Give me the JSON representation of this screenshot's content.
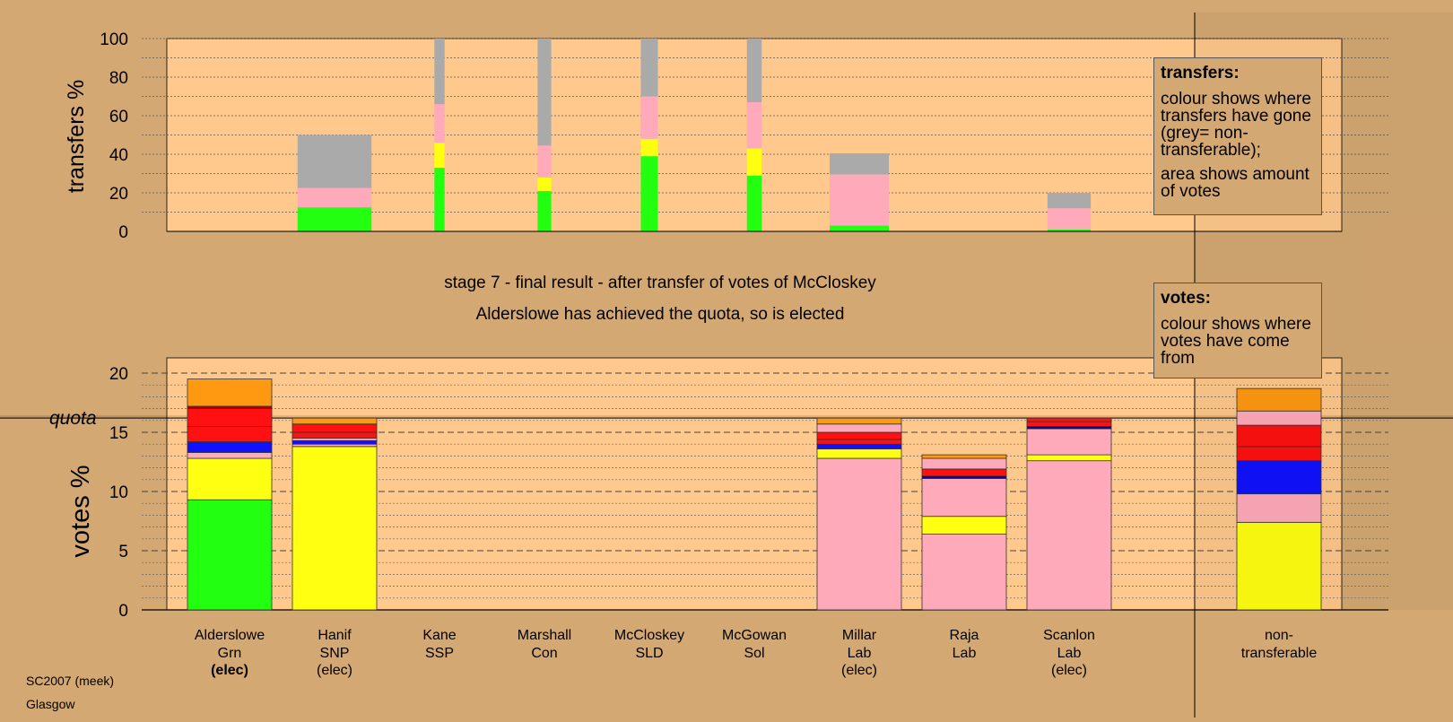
{
  "titles": {
    "stage": "stage 7 - final result - after transfer of votes of McCloskey",
    "status": "Alderslowe has achieved the quota, so is elected"
  },
  "legend": {
    "transfers": {
      "title": "transfers:",
      "para1": "colour shows where transfers have gone (grey= non-transferable);",
      "para2": "area shows amount of votes"
    },
    "votes": {
      "title": "votes:",
      "para1": "colour shows where votes have come from"
    }
  },
  "footer": {
    "line1": "SC2007 (meek)",
    "line2": "Glasgow"
  },
  "colors": {
    "background": "#d4a872",
    "plot_background": "#ffc88c",
    "green": "#22ff11",
    "yellow": "#ffff11",
    "pink": "#ffaabb",
    "blue": "#1111ff",
    "red": "#ff1111",
    "orange": "#ff9911",
    "grey": "#aaaaaa",
    "navy": "#000088",
    "darkred": "#aa0000"
  },
  "candidates": [
    {
      "name": "Alderslowe",
      "party": "Grn",
      "note": "(elec)",
      "note_bold": true
    },
    {
      "name": "Hanif",
      "party": "SNP",
      "note": "(elec)",
      "note_bold": false
    },
    {
      "name": "Kane",
      "party": "SSP",
      "note": "",
      "note_bold": false
    },
    {
      "name": "Marshall",
      "party": "Con",
      "note": "",
      "note_bold": false
    },
    {
      "name": "McCloskey",
      "party": "SLD",
      "note": "",
      "note_bold": false
    },
    {
      "name": "McGowan",
      "party": "Sol",
      "note": "",
      "note_bold": false
    },
    {
      "name": "Millar",
      "party": "Lab",
      "note": "(elec)",
      "note_bold": false
    },
    {
      "name": "Raja",
      "party": "Lab",
      "note": "",
      "note_bold": false
    },
    {
      "name": "Scanlon",
      "party": "Lab",
      "note": "(elec)",
      "note_bold": false
    },
    {
      "name": "non-",
      "party": "transferable",
      "note": "",
      "note_bold": false
    }
  ],
  "chart_data": [
    {
      "type": "bar",
      "subtype": "stacked-transfer",
      "ylabel": "transfers %",
      "ylim": [
        0,
        100
      ],
      "yticks": [
        0,
        20,
        40,
        60,
        80,
        100
      ],
      "grid": true,
      "bars": [
        {
          "from": "Hanif",
          "width_share": 0.65,
          "segments": [
            {
              "color": "green",
              "value": 12.5
            },
            {
              "color": "pink",
              "value": 10
            },
            {
              "color": "grey",
              "value": 27.5
            }
          ]
        },
        {
          "from": "Kane",
          "width_share": 0.09,
          "segments": [
            {
              "color": "green",
              "value": 33
            },
            {
              "color": "yellow",
              "value": 13
            },
            {
              "color": "pink",
              "value": 20
            },
            {
              "color": "grey",
              "value": 34
            }
          ]
        },
        {
          "from": "Marshall",
          "width_share": 0.12,
          "segments": [
            {
              "color": "green",
              "value": 21
            },
            {
              "color": "yellow",
              "value": 7
            },
            {
              "color": "pink",
              "value": 16.5
            },
            {
              "color": "grey",
              "value": 55.5
            }
          ]
        },
        {
          "from": "McCloskey",
          "width_share": 0.15,
          "segments": [
            {
              "color": "green",
              "value": 39
            },
            {
              "color": "yellow",
              "value": 9
            },
            {
              "color": "pink",
              "value": 22
            },
            {
              "color": "grey",
              "value": 30
            }
          ]
        },
        {
          "from": "McGowan",
          "width_share": 0.13,
          "segments": [
            {
              "color": "green",
              "value": 29
            },
            {
              "color": "yellow",
              "value": 14
            },
            {
              "color": "pink",
              "value": 24
            },
            {
              "color": "grey",
              "value": 33
            }
          ]
        },
        {
          "from": "Millar",
          "width_share": 0.52,
          "segments": [
            {
              "color": "green",
              "value": 3
            },
            {
              "color": "pink",
              "value": 26.5
            },
            {
              "color": "grey",
              "value": 11
            }
          ]
        },
        {
          "from": "Scanlon",
          "width_share": 0.38,
          "segments": [
            {
              "color": "green",
              "value": 1
            },
            {
              "color": "pink",
              "value": 11
            },
            {
              "color": "grey",
              "value": 8
            }
          ]
        }
      ]
    },
    {
      "type": "bar",
      "subtype": "stacked",
      "ylabel": "votes %",
      "ylim": [
        0,
        21
      ],
      "yticks": [
        0,
        5,
        10,
        15,
        20
      ],
      "quota": 16.2,
      "quota_label": "quota",
      "grid": true,
      "bars": [
        {
          "candidate": "Alderslowe",
          "segments": [
            {
              "color": "green",
              "value": 9.3
            },
            {
              "color": "yellow",
              "value": 3.5
            },
            {
              "color": "pink",
              "value": 0.5
            },
            {
              "color": "blue",
              "value": 0.9
            },
            {
              "color": "red",
              "value": 1.3
            },
            {
              "color": "red",
              "value": 1.5
            },
            {
              "color": "darkred",
              "value": 0.2
            },
            {
              "color": "orange",
              "value": 2.3
            }
          ]
        },
        {
          "candidate": "Hanif",
          "segments": [
            {
              "color": "yellow",
              "value": 13.8
            },
            {
              "color": "pink",
              "value": 0.2
            },
            {
              "color": "blue",
              "value": 0.3
            },
            {
              "color": "pink",
              "value": 0.2
            },
            {
              "color": "red",
              "value": 0.5
            },
            {
              "color": "red",
              "value": 0.7
            },
            {
              "color": "orange",
              "value": 0.5
            }
          ]
        },
        {
          "candidate": "Kane",
          "segments": []
        },
        {
          "candidate": "Marshall",
          "segments": []
        },
        {
          "candidate": "McCloskey",
          "segments": []
        },
        {
          "candidate": "McGowan",
          "segments": []
        },
        {
          "candidate": "Millar",
          "segments": [
            {
              "color": "pink",
              "value": 12.8
            },
            {
              "color": "yellow",
              "value": 0.8
            },
            {
              "color": "blue",
              "value": 0.4
            },
            {
              "color": "red",
              "value": 0.4
            },
            {
              "color": "red",
              "value": 0.6
            },
            {
              "color": "pink",
              "value": 0.7
            },
            {
              "color": "orange",
              "value": 0.5
            }
          ]
        },
        {
          "candidate": "Raja",
          "segments": [
            {
              "color": "pink",
              "value": 6.4
            },
            {
              "color": "yellow",
              "value": 1.5
            },
            {
              "color": "pink",
              "value": 3.2
            },
            {
              "color": "navy",
              "value": 0.2
            },
            {
              "color": "red",
              "value": 0.6
            },
            {
              "color": "pink",
              "value": 0.9
            },
            {
              "color": "orange",
              "value": 0.3
            }
          ]
        },
        {
          "candidate": "Scanlon",
          "segments": [
            {
              "color": "pink",
              "value": 12.6
            },
            {
              "color": "yellow",
              "value": 0.5
            },
            {
              "color": "pink",
              "value": 2.2
            },
            {
              "color": "navy",
              "value": 0.2
            },
            {
              "color": "red",
              "value": 0.4
            },
            {
              "color": "red",
              "value": 0.3
            }
          ]
        },
        {
          "candidate": "non-transferable",
          "segments": [
            {
              "color": "yellow",
              "value": 7.4
            },
            {
              "color": "pink",
              "value": 2.4
            },
            {
              "color": "blue",
              "value": 2.8
            },
            {
              "color": "red",
              "value": 1.2
            },
            {
              "color": "red",
              "value": 1.8
            },
            {
              "color": "pink",
              "value": 1.2
            },
            {
              "color": "orange",
              "value": 1.9
            }
          ]
        }
      ]
    }
  ]
}
